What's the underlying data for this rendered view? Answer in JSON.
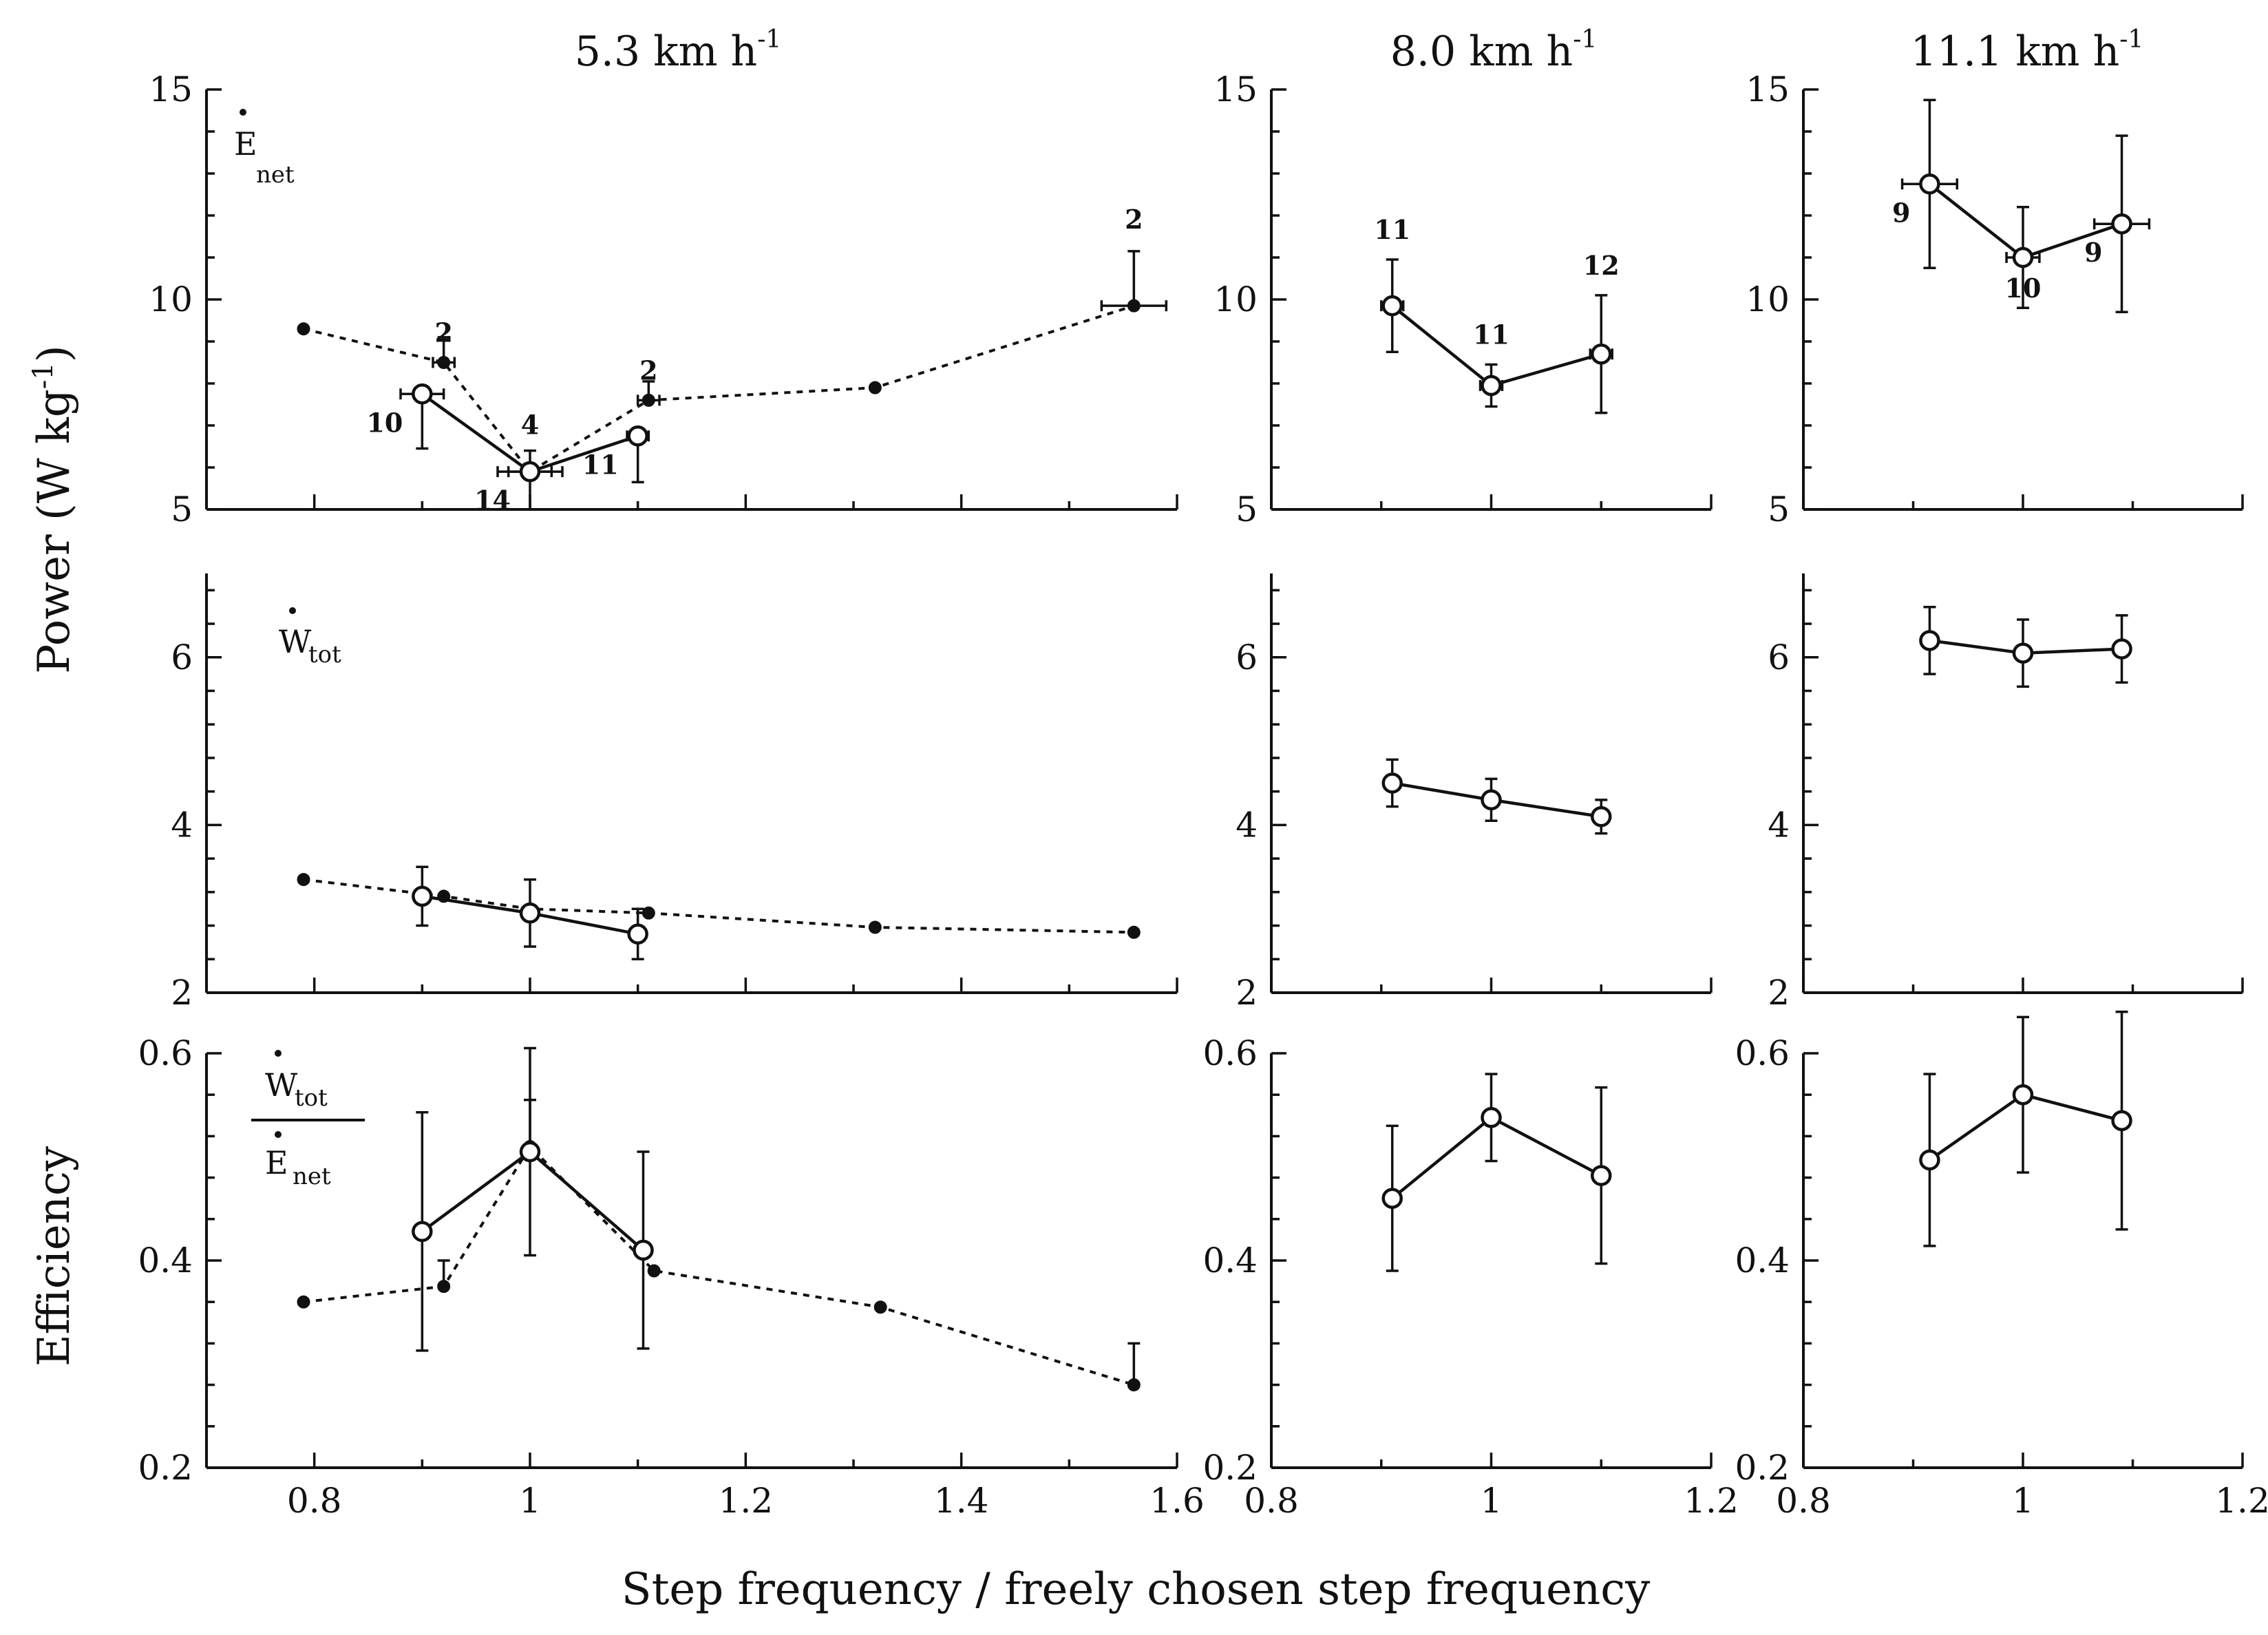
{
  "figure": {
    "ylabel_top": "Power (W kg",
    "ylabel_top_exp": "-1",
    "ylabel_top_end": ")",
    "ylabel_bottom": "Efficiency",
    "xlabel": "Step frequency / freely chosen step frequency"
  },
  "columns": [
    {
      "title": "5.3 km h",
      "exp": "-1"
    },
    {
      "title": "8.0 km h",
      "exp": "-1"
    },
    {
      "title": "11.1 km h",
      "exp": "-1"
    }
  ],
  "row_labels": {
    "enet_main": "E",
    "enet_sub": "net",
    "wtot_main": "W",
    "wtot_sub": "tot",
    "eff_num_main": "W",
    "eff_num_sub": "tot",
    "eff_den_main": "E",
    "eff_den_sub": "net"
  },
  "chart_data": [
    {
      "type": "line",
      "panel": "enet-5.3",
      "row": 0,
      "col": 0,
      "title": "5.3 km h-1",
      "ylabel": "Power (W kg-1)",
      "xlim": [
        0.7,
        1.6
      ],
      "ylim": [
        5,
        15
      ],
      "xticks": [
        0.8,
        1,
        1.2,
        1.4,
        1.6
      ],
      "yticks": [
        5,
        10,
        15
      ],
      "xtick_labels": [],
      "ytick_labels": [
        "5",
        "10",
        "15"
      ],
      "series": [
        {
          "name": "Dashed (filled)",
          "style": "dashed",
          "marker": "filled",
          "x": [
            0.79,
            0.92,
            1.0,
            1.11,
            1.32,
            1.56
          ],
          "y": [
            9.3,
            8.5,
            5.9,
            7.6,
            7.9,
            9.85
          ],
          "yerr": [
            0,
            0.6,
            0.5,
            0.45,
            0,
            1.3
          ],
          "xerr": [
            0,
            0.01,
            0.02,
            0.01,
            0,
            0.03
          ]
        },
        {
          "name": "Solid (open)",
          "style": "solid",
          "marker": "open",
          "x": [
            0.9,
            1.0,
            1.1
          ],
          "y": [
            7.75,
            5.9,
            6.75
          ],
          "yerr": [
            1.3,
            0.9,
            1.1
          ],
          "xerr": [
            0.02,
            0.03,
            0.01
          ]
        }
      ],
      "annotations": [
        {
          "text": "2",
          "x": 0.92,
          "y": 8.5,
          "pos": "above"
        },
        {
          "text": "4",
          "x": 1.0,
          "y": 6.3,
          "pos": "above"
        },
        {
          "text": "2",
          "x": 1.11,
          "y": 7.6,
          "pos": "above"
        },
        {
          "text": "2",
          "x": 1.56,
          "y": 11.2,
          "pos": "above"
        },
        {
          "text": "10",
          "x": 0.9,
          "y": 7.75,
          "pos": "left-below"
        },
        {
          "text": "14",
          "x": 1.0,
          "y": 5.9,
          "pos": "left-below"
        },
        {
          "text": "11",
          "x": 1.1,
          "y": 6.75,
          "pos": "left-below"
        }
      ]
    },
    {
      "type": "line",
      "panel": "enet-8.0",
      "row": 0,
      "col": 1,
      "title": "8.0 km h-1",
      "xlim": [
        0.8,
        1.2
      ],
      "ylim": [
        5,
        15
      ],
      "xticks": [
        0.8,
        1,
        1.2
      ],
      "yticks": [
        5,
        10,
        15
      ],
      "xtick_labels": [],
      "ytick_labels": [
        "5",
        "10",
        "15"
      ],
      "series": [
        {
          "name": "Solid (open)",
          "style": "solid",
          "marker": "open",
          "x": [
            0.91,
            1.0,
            1.1
          ],
          "y": [
            9.85,
            7.95,
            8.7
          ],
          "yerr": [
            1.1,
            0.5,
            1.4
          ],
          "xerr": [
            0.01,
            0.01,
            0.01
          ]
        }
      ],
      "annotations": [
        {
          "text": "11",
          "x": 0.91,
          "y": 10.95,
          "pos": "above"
        },
        {
          "text": "11",
          "x": 1.0,
          "y": 8.45,
          "pos": "above"
        },
        {
          "text": "12",
          "x": 1.1,
          "y": 10.1,
          "pos": "above"
        }
      ]
    },
    {
      "type": "line",
      "panel": "enet-11.1",
      "row": 0,
      "col": 2,
      "title": "11.1 km h-1",
      "xlim": [
        0.8,
        1.2
      ],
      "ylim": [
        5,
        15
      ],
      "xticks": [
        0.8,
        1,
        1.2
      ],
      "yticks": [
        5,
        10,
        15
      ],
      "xtick_labels": [],
      "ytick_labels": [
        "5",
        "10",
        "15"
      ],
      "series": [
        {
          "name": "Solid (open)",
          "style": "solid",
          "marker": "open",
          "x": [
            0.915,
            1.0,
            1.09
          ],
          "y": [
            12.75,
            11.0,
            11.8
          ],
          "yerr": [
            2.0,
            1.2,
            2.1
          ],
          "xerr": [
            0.025,
            0.015,
            0.025
          ]
        }
      ],
      "annotations": [
        {
          "text": "9",
          "x": 0.915,
          "y": 12.75,
          "pos": "left-below"
        },
        {
          "text": "10",
          "x": 1.0,
          "y": 11.0,
          "pos": "below"
        },
        {
          "text": "9",
          "x": 1.09,
          "y": 11.8,
          "pos": "left-below"
        }
      ]
    },
    {
      "type": "line",
      "panel": "wtot-5.3",
      "row": 1,
      "col": 0,
      "xlim": [
        0.7,
        1.6
      ],
      "ylim": [
        2,
        7
      ],
      "xticks": [
        0.8,
        1,
        1.2,
        1.4,
        1.6
      ],
      "yticks": [
        2,
        4,
        6
      ],
      "xtick_labels": [],
      "ytick_labels": [
        "2",
        "4",
        "6"
      ],
      "series": [
        {
          "name": "Dashed (filled)",
          "style": "dashed",
          "marker": "filled",
          "x": [
            0.79,
            0.92,
            1.0,
            1.11,
            1.32,
            1.56
          ],
          "y": [
            3.35,
            3.15,
            3.0,
            2.95,
            2.78,
            2.72
          ],
          "yerr": [
            0,
            0,
            0,
            0,
            0,
            0
          ],
          "xerr": [
            0,
            0,
            0,
            0,
            0,
            0
          ]
        },
        {
          "name": "Solid (open)",
          "style": "solid",
          "marker": "open",
          "x": [
            0.9,
            1.0,
            1.1
          ],
          "y": [
            3.15,
            2.95,
            2.7
          ],
          "yerr": [
            0.35,
            0.4,
            0.3
          ],
          "xerr": [
            0,
            0,
            0
          ]
        }
      ],
      "annotations": []
    },
    {
      "type": "line",
      "panel": "wtot-8.0",
      "row": 1,
      "col": 1,
      "xlim": [
        0.8,
        1.2
      ],
      "ylim": [
        2,
        7
      ],
      "xticks": [
        0.8,
        1,
        1.2
      ],
      "yticks": [
        2,
        4,
        6
      ],
      "xtick_labels": [],
      "ytick_labels": [
        "2",
        "4",
        "6"
      ],
      "series": [
        {
          "name": "Solid (open)",
          "style": "solid",
          "marker": "open",
          "x": [
            0.91,
            1.0,
            1.1
          ],
          "y": [
            4.5,
            4.3,
            4.1
          ],
          "yerr": [
            0.28,
            0.25,
            0.2
          ],
          "xerr": [
            0,
            0,
            0
          ]
        }
      ],
      "annotations": []
    },
    {
      "type": "line",
      "panel": "wtot-11.1",
      "row": 1,
      "col": 2,
      "xlim": [
        0.8,
        1.2
      ],
      "ylim": [
        2,
        7
      ],
      "xticks": [
        0.8,
        1,
        1.2
      ],
      "yticks": [
        2,
        4,
        6
      ],
      "xtick_labels": [],
      "ytick_labels": [
        "2",
        "4",
        "6"
      ],
      "series": [
        {
          "name": "Solid (open)",
          "style": "solid",
          "marker": "open",
          "x": [
            0.915,
            1.0,
            1.09
          ],
          "y": [
            6.2,
            6.05,
            6.1
          ],
          "yerr": [
            0.4,
            0.4,
            0.4
          ],
          "xerr": [
            0,
            0,
            0
          ]
        }
      ],
      "annotations": []
    },
    {
      "type": "line",
      "panel": "eff-5.3",
      "row": 2,
      "col": 0,
      "ylabel": "Efficiency",
      "xlim": [
        0.7,
        1.6
      ],
      "ylim": [
        0.2,
        0.6
      ],
      "xticks": [
        0.8,
        1,
        1.2,
        1.4,
        1.6
      ],
      "yticks": [
        0.2,
        0.4,
        0.6
      ],
      "xtick_labels": [
        "0.8",
        "1",
        "1.2",
        "1.4",
        "1.6"
      ],
      "ytick_labels": [
        "0.2",
        "0.4",
        "0.6"
      ],
      "series": [
        {
          "name": "Dashed (filled)",
          "style": "dashed",
          "marker": "filled",
          "x": [
            0.79,
            0.92,
            1.0,
            1.115,
            1.325,
            1.56
          ],
          "y": [
            0.36,
            0.375,
            0.51,
            0.39,
            0.355,
            0.28
          ],
          "yerr": [
            0,
            0.025,
            0.045,
            0,
            0,
            0.04
          ],
          "xerr": [
            0,
            0,
            0,
            0,
            0,
            0
          ]
        },
        {
          "name": "Solid (open)",
          "style": "solid",
          "marker": "open",
          "x": [
            0.9,
            1.0,
            1.105
          ],
          "y": [
            0.428,
            0.505,
            0.41
          ],
          "yerr": [
            0.115,
            0.1,
            0.095
          ],
          "xerr": [
            0,
            0,
            0
          ]
        }
      ],
      "annotations": []
    },
    {
      "type": "line",
      "panel": "eff-8.0",
      "row": 2,
      "col": 1,
      "xlim": [
        0.8,
        1.2
      ],
      "ylim": [
        0.2,
        0.6
      ],
      "xticks": [
        0.8,
        1,
        1.2
      ],
      "yticks": [
        0.2,
        0.4,
        0.6
      ],
      "xtick_labels": [
        "0.8",
        "1",
        "1.2"
      ],
      "ytick_labels": [
        "0.2",
        "0.4",
        "0.6"
      ],
      "series": [
        {
          "name": "Solid (open)",
          "style": "solid",
          "marker": "open",
          "x": [
            0.91,
            1.0,
            1.1
          ],
          "y": [
            0.46,
            0.538,
            0.482
          ],
          "yerr": [
            0.07,
            0.042,
            0.085
          ],
          "xerr": [
            0,
            0,
            0
          ]
        }
      ],
      "annotations": []
    },
    {
      "type": "line",
      "panel": "eff-11.1",
      "row": 2,
      "col": 2,
      "xlim": [
        0.8,
        1.2
      ],
      "ylim": [
        0.2,
        0.6
      ],
      "xticks": [
        0.8,
        1,
        1.2
      ],
      "yticks": [
        0.2,
        0.4,
        0.6
      ],
      "xtick_labels": [
        "0.8",
        "1",
        "1.2"
      ],
      "ytick_labels": [
        "0.2",
        "0.4",
        "0.6"
      ],
      "series": [
        {
          "name": "Solid (open)",
          "style": "solid",
          "marker": "open",
          "x": [
            0.915,
            1.0,
            1.09
          ],
          "y": [
            0.497,
            0.56,
            0.535
          ],
          "yerr": [
            0.083,
            0.075,
            0.105
          ],
          "xerr": [
            0,
            0,
            0
          ]
        }
      ],
      "annotations": []
    }
  ]
}
